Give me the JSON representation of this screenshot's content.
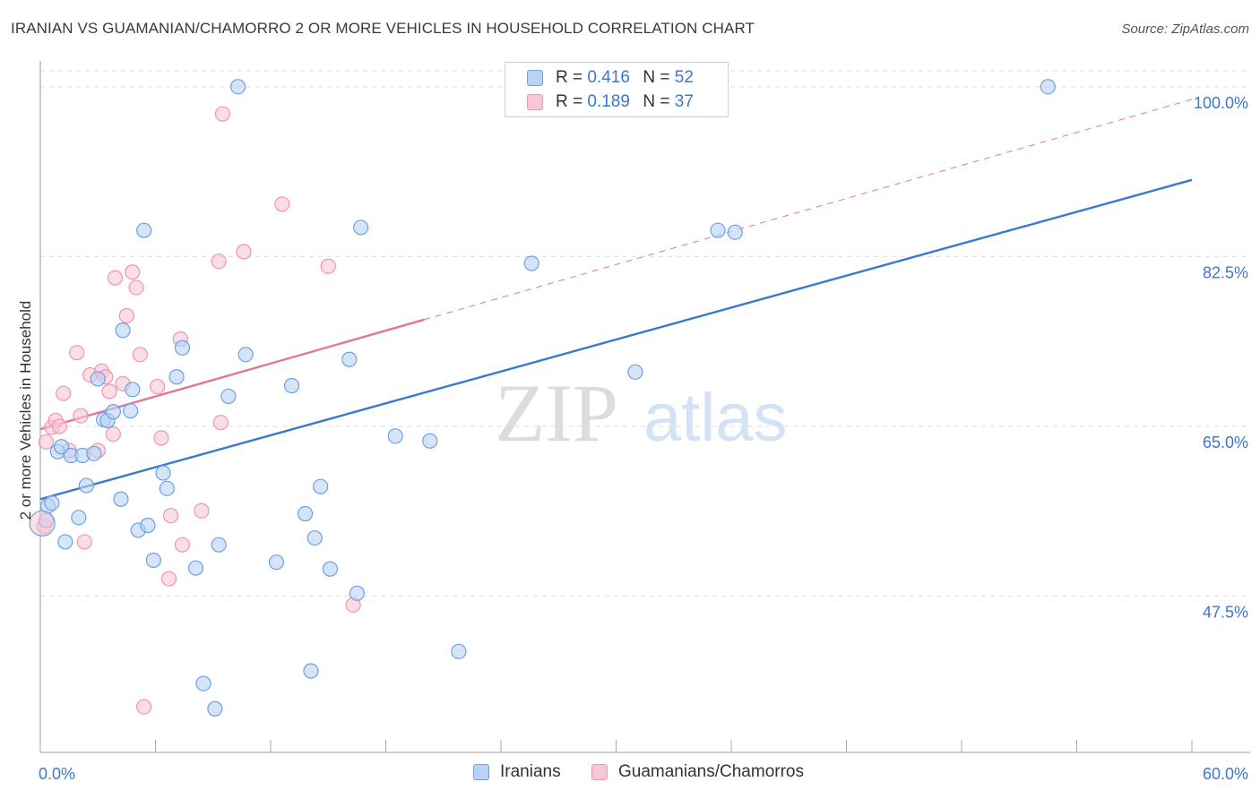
{
  "header": {
    "title": "IRANIAN VS GUAMANIAN/CHAMORRO 2 OR MORE VEHICLES IN HOUSEHOLD CORRELATION CHART",
    "source": "Source: ZipAtlas.com"
  },
  "watermark": {
    "zip": "ZIP",
    "atlas": "atlas"
  },
  "stats": [
    {
      "r_label": "R =",
      "r_value": "0.416",
      "n_label": "N =",
      "n_value": "52"
    },
    {
      "r_label": "R =",
      "r_value": "0.189",
      "n_label": "N =",
      "n_value": "37"
    }
  ],
  "colors": {
    "iranians_fill": "#b9d3f5",
    "iranians_stroke": "#6f9fe0",
    "iranians_line": "#3b78d0",
    "guam_fill": "#f8c7d6",
    "guam_stroke": "#ee95b1",
    "guam_line": "#e4749c",
    "tick_label": "#3e76cc",
    "grid": "#dddddd"
  },
  "chart_data": {
    "type": "scatter",
    "title": "IRANIAN VS GUAMANIAN/CHAMORRO 2 OR MORE VEHICLES IN HOUSEHOLD CORRELATION CHART",
    "xlabel": "",
    "ylabel": "2 or more Vehicles in Household",
    "xlim": [
      0,
      60
    ],
    "ylim": [
      31.4,
      103.4
    ],
    "x_tick_labels": [
      "0.0%",
      "60.0%"
    ],
    "y_ticks": [
      47.5,
      65.0,
      82.5,
      100.0
    ],
    "y_tick_labels": [
      "47.5%",
      "65.0%",
      "82.5%",
      "100.0%"
    ],
    "grid": true,
    "legend_position": "bottom-center",
    "series": [
      {
        "name": "Iranians",
        "marker_color": "#b9d3f5",
        "points": [
          [
            0.3,
            55.3
          ],
          [
            0.4,
            56.8
          ],
          [
            0.6,
            57.1
          ],
          [
            0.9,
            62.4
          ],
          [
            1.1,
            62.9
          ],
          [
            1.3,
            53.1
          ],
          [
            1.6,
            62.0
          ],
          [
            2.0,
            55.6
          ],
          [
            2.2,
            62.0
          ],
          [
            2.4,
            58.9
          ],
          [
            2.8,
            62.2
          ],
          [
            3.0,
            69.9
          ],
          [
            3.3,
            65.7
          ],
          [
            3.5,
            65.6
          ],
          [
            3.8,
            66.5
          ],
          [
            4.2,
            57.5
          ],
          [
            4.3,
            74.9
          ],
          [
            4.7,
            66.6
          ],
          [
            4.8,
            68.8
          ],
          [
            5.1,
            54.3
          ],
          [
            5.4,
            85.2
          ],
          [
            5.6,
            54.8
          ],
          [
            5.9,
            51.2
          ],
          [
            6.4,
            60.2
          ],
          [
            6.6,
            58.6
          ],
          [
            7.1,
            70.1
          ],
          [
            7.4,
            73.1
          ],
          [
            8.1,
            50.4
          ],
          [
            8.5,
            38.5
          ],
          [
            9.1,
            35.9
          ],
          [
            9.3,
            52.8
          ],
          [
            9.8,
            68.1
          ],
          [
            10.3,
            100.0
          ],
          [
            10.7,
            72.4
          ],
          [
            12.3,
            51.0
          ],
          [
            13.1,
            69.2
          ],
          [
            13.8,
            56.0
          ],
          [
            14.1,
            39.8
          ],
          [
            14.3,
            53.5
          ],
          [
            14.6,
            58.8
          ],
          [
            15.1,
            50.3
          ],
          [
            16.1,
            71.9
          ],
          [
            16.5,
            47.8
          ],
          [
            16.7,
            85.5
          ],
          [
            18.5,
            64.0
          ],
          [
            20.3,
            63.5
          ],
          [
            21.8,
            41.8
          ],
          [
            25.6,
            81.8
          ],
          [
            31.0,
            70.6
          ],
          [
            35.3,
            85.2
          ],
          [
            36.2,
            85.0
          ],
          [
            52.5,
            100.0
          ]
        ]
      },
      {
        "name": "Guamanians/Chamorros",
        "marker_color": "#f8c7d6",
        "points": [
          [
            0.2,
            54.7
          ],
          [
            0.3,
            63.4
          ],
          [
            0.6,
            64.9
          ],
          [
            0.8,
            65.6
          ],
          [
            1.0,
            65.0
          ],
          [
            1.2,
            68.4
          ],
          [
            1.5,
            62.5
          ],
          [
            1.9,
            72.6
          ],
          [
            2.1,
            66.1
          ],
          [
            2.3,
            53.1
          ],
          [
            2.6,
            70.3
          ],
          [
            3.0,
            62.5
          ],
          [
            3.2,
            70.7
          ],
          [
            3.4,
            70.1
          ],
          [
            3.6,
            68.6
          ],
          [
            3.8,
            64.2
          ],
          [
            3.9,
            80.3
          ],
          [
            4.3,
            69.4
          ],
          [
            4.5,
            76.4
          ],
          [
            4.8,
            80.9
          ],
          [
            5.0,
            79.3
          ],
          [
            5.2,
            72.4
          ],
          [
            5.4,
            36.1
          ],
          [
            6.1,
            69.1
          ],
          [
            6.3,
            63.8
          ],
          [
            6.7,
            49.3
          ],
          [
            6.8,
            55.8
          ],
          [
            7.3,
            74.0
          ],
          [
            7.4,
            52.8
          ],
          [
            8.4,
            56.3
          ],
          [
            9.3,
            82.0
          ],
          [
            9.4,
            65.4
          ],
          [
            9.5,
            97.2
          ],
          [
            10.6,
            83.0
          ],
          [
            12.6,
            87.9
          ],
          [
            15.0,
            81.5
          ],
          [
            16.3,
            46.6
          ]
        ]
      }
    ],
    "trend_lines": [
      {
        "series": "Iranians",
        "x": [
          0,
          60
        ],
        "y": [
          57.5,
          90.4
        ],
        "style": "solid"
      },
      {
        "series": "Guamanians/Chamorros",
        "x": [
          0,
          20
        ],
        "y": [
          64.7,
          76.0
        ],
        "style": "solid"
      },
      {
        "series": "Guamanians/Chamorros",
        "x": [
          20,
          60
        ],
        "y": [
          76.0,
          98.7
        ],
        "style": "dashed"
      }
    ]
  }
}
